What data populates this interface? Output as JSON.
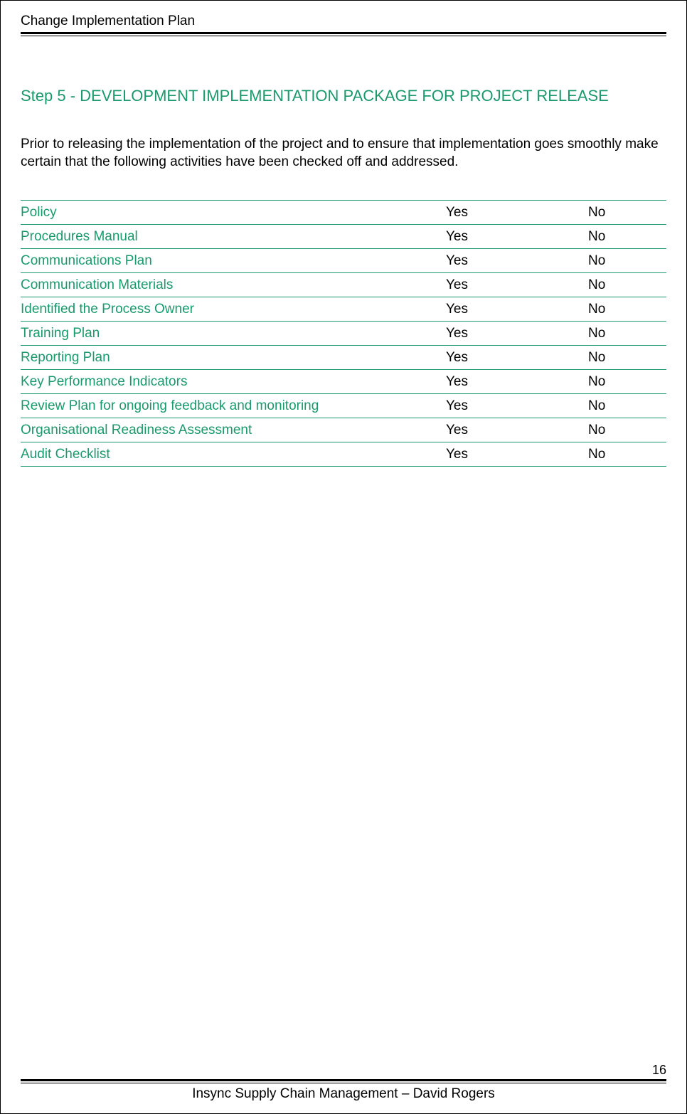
{
  "header": {
    "title": "Change Implementation Plan"
  },
  "step": {
    "title": "Step 5 - DEVELOPMENT IMPLEMENTATION PACKAGE FOR PROJECT RELEASE"
  },
  "intro": "Prior to releasing the implementation of the project and to ensure that implementation goes smoothly make certain that the following activities have been checked off and addressed.",
  "checklist": {
    "yes_label": "Yes",
    "no_label": "No",
    "items": [
      {
        "label": "Policy"
      },
      {
        "label": "Procedures Manual"
      },
      {
        "label": "Communications Plan"
      },
      {
        "label": "Communication Materials"
      },
      {
        "label": "Identified the Process Owner"
      },
      {
        "label": "Training Plan"
      },
      {
        "label": "Reporting Plan"
      },
      {
        "label": "Key Performance Indicators"
      },
      {
        "label": "Review Plan for ongoing feedback and monitoring"
      },
      {
        "label": "Organisational Readiness Assessment"
      },
      {
        "label": "Audit Checklist"
      }
    ]
  },
  "footer": {
    "page_number": "16",
    "text": "Insync Supply Chain Management – David Rogers"
  },
  "colors": {
    "accent": "#1a9a6c",
    "text": "#000000",
    "background": "#ffffff"
  }
}
